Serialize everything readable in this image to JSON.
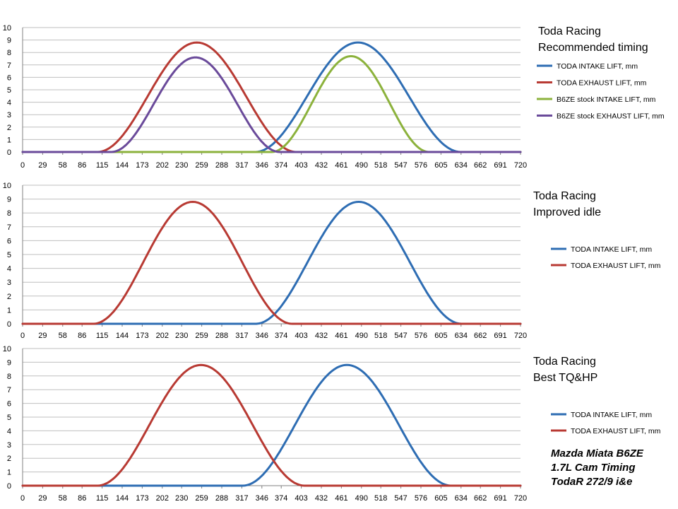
{
  "colors": {
    "intake": "#2e6db3",
    "exhaust": "#b83a33",
    "stock_intake": "#8cb23c",
    "stock_exhaust": "#6a4a9a",
    "grid": "#bfbfbf",
    "axis": "#808080"
  },
  "caption": {
    "line1": "Mazda Miata  B6ZE",
    "line2": "1.7L Cam Timing",
    "line3": "TodaR 272/9 i&e"
  },
  "chart_data": [
    {
      "type": "line",
      "title_line1": "Toda Racing",
      "title_line2": "Recommended timing",
      "x_ticks": [
        "0",
        "29",
        "58",
        "86",
        "115",
        "144",
        "173",
        "202",
        "230",
        "259",
        "288",
        "317",
        "346",
        "374",
        "403",
        "432",
        "461",
        "490",
        "518",
        "547",
        "576",
        "605",
        "634",
        "662",
        "691",
        "720"
      ],
      "y_ticks": [
        "0",
        "1",
        "2",
        "3",
        "4",
        "5",
        "6",
        "7",
        "8",
        "9",
        "10"
      ],
      "xlim": [
        0,
        720
      ],
      "ylim": [
        0,
        10
      ],
      "legend_position": "right",
      "series": [
        {
          "name": "TODA INTAKE LIFT, mm",
          "color_key": "intake",
          "start": 336,
          "peak": 485,
          "end": 634,
          "max": 8.8
        },
        {
          "name": "TODA EXHAUST LIFT, mm",
          "color_key": "exhaust",
          "start": 108,
          "peak": 252,
          "end": 396,
          "max": 8.8
        },
        {
          "name": "B6ZE stock INTAKE LIFT, mm",
          "color_key": "stock_intake",
          "start": 360,
          "peak": 475,
          "end": 588,
          "max": 7.7
        },
        {
          "name": "B6ZE stock EXHAUST LIFT, mm",
          "color_key": "stock_exhaust",
          "start": 128,
          "peak": 250,
          "end": 372,
          "max": 7.6
        }
      ]
    },
    {
      "type": "line",
      "title_line1": "Toda Racing",
      "title_line2": "Improved idle",
      "x_ticks": [
        "0",
        "29",
        "58",
        "86",
        "115",
        "144",
        "173",
        "202",
        "230",
        "259",
        "288",
        "317",
        "346",
        "374",
        "403",
        "432",
        "461",
        "490",
        "518",
        "547",
        "576",
        "605",
        "634",
        "662",
        "691",
        "720"
      ],
      "y_ticks": [
        "0",
        "1",
        "2",
        "3",
        "4",
        "5",
        "6",
        "7",
        "8",
        "9",
        "10"
      ],
      "xlim": [
        0,
        720
      ],
      "ylim": [
        0,
        10
      ],
      "legend_position": "right",
      "series": [
        {
          "name": "TODA INTAKE LIFT, mm",
          "color_key": "intake",
          "start": 337,
          "peak": 486,
          "end": 635,
          "max": 8.8
        },
        {
          "name": "TODA EXHAUST LIFT, mm",
          "color_key": "exhaust",
          "start": 102,
          "peak": 246,
          "end": 390,
          "max": 8.8
        }
      ]
    },
    {
      "type": "line",
      "title_line1": "Toda Racing",
      "title_line2": "Best TQ&HP",
      "x_ticks": [
        "0",
        "29",
        "58",
        "86",
        "115",
        "144",
        "173",
        "202",
        "230",
        "259",
        "288",
        "317",
        "346",
        "374",
        "403",
        "432",
        "461",
        "490",
        "518",
        "547",
        "576",
        "605",
        "634",
        "662",
        "691",
        "720"
      ],
      "y_ticks": [
        "0",
        "1",
        "2",
        "3",
        "4",
        "5",
        "6",
        "7",
        "8",
        "9",
        "10"
      ],
      "xlim": [
        0,
        720
      ],
      "ylim": [
        0,
        10
      ],
      "legend_position": "right",
      "series": [
        {
          "name": "TODA INTAKE LIFT, mm",
          "color_key": "intake",
          "start": 318,
          "peak": 469,
          "end": 620,
          "max": 8.8
        },
        {
          "name": "TODA EXHAUST LIFT, mm",
          "color_key": "exhaust",
          "start": 108,
          "peak": 258,
          "end": 408,
          "max": 8.8
        }
      ]
    }
  ]
}
